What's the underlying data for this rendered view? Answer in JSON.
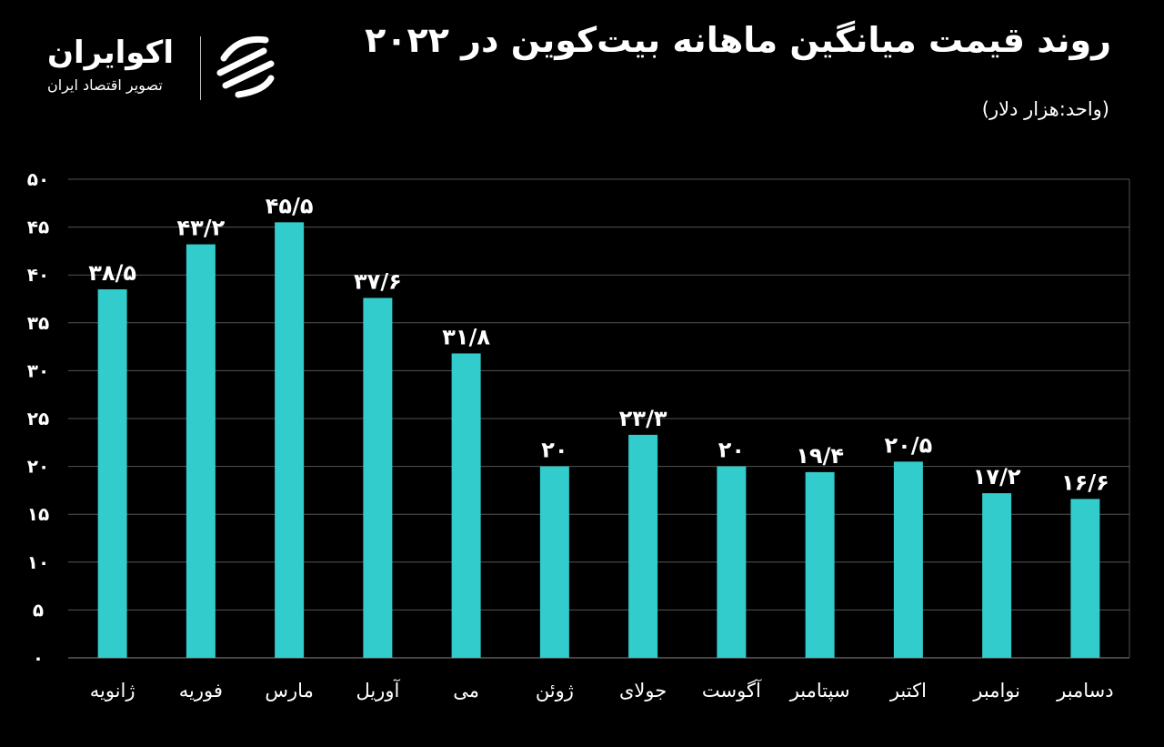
{
  "header": {
    "title": "روند قیمت میانگین ماهانه بیت‌کوین در ۲۰۲۲",
    "unit": "(واحد:هزار دلار)"
  },
  "logo": {
    "name": "اکوایران",
    "subtitle": "تصویر اقتصاد ایران"
  },
  "colors": {
    "bar": "#33CCCC",
    "grid": "#555555",
    "background": "#000000"
  },
  "chart_data": {
    "type": "bar",
    "title": "روند قیمت میانگین ماهانه بیت‌کوین در ۲۰۲۲",
    "ylabel": "(واحد:هزار دلار)",
    "xlabel": "",
    "ylim": [
      0,
      50
    ],
    "grid": true,
    "yticks": [
      0,
      5,
      10,
      15,
      20,
      25,
      30,
      35,
      40,
      45,
      50
    ],
    "ytick_labels": [
      "۰",
      "۵",
      "۱۰",
      "۱۵",
      "۲۰",
      "۲۵",
      "۳۰",
      "۳۵",
      "۴۰",
      "۴۵",
      "۵۰"
    ],
    "categories": [
      "ژانویه",
      "فوریه",
      "مارس",
      "آوریل",
      "می",
      "ژوئن",
      "جولای",
      "آگوست",
      "سپتامبر",
      "اکتبر",
      "نوامبر",
      "دسامبر"
    ],
    "values": [
      38.5,
      43.2,
      45.5,
      37.6,
      31.8,
      20,
      23.3,
      20,
      19.4,
      20.5,
      17.2,
      16.6
    ],
    "value_labels": [
      "۳۸/۵",
      "۴۳/۲",
      "۴۵/۵",
      "۳۷/۶",
      "۳۱/۸",
      "۲۰",
      "۲۳/۳",
      "۲۰",
      "۱۹/۴",
      "۲۰/۵",
      "۱۷/۲",
      "۱۶/۶"
    ]
  }
}
